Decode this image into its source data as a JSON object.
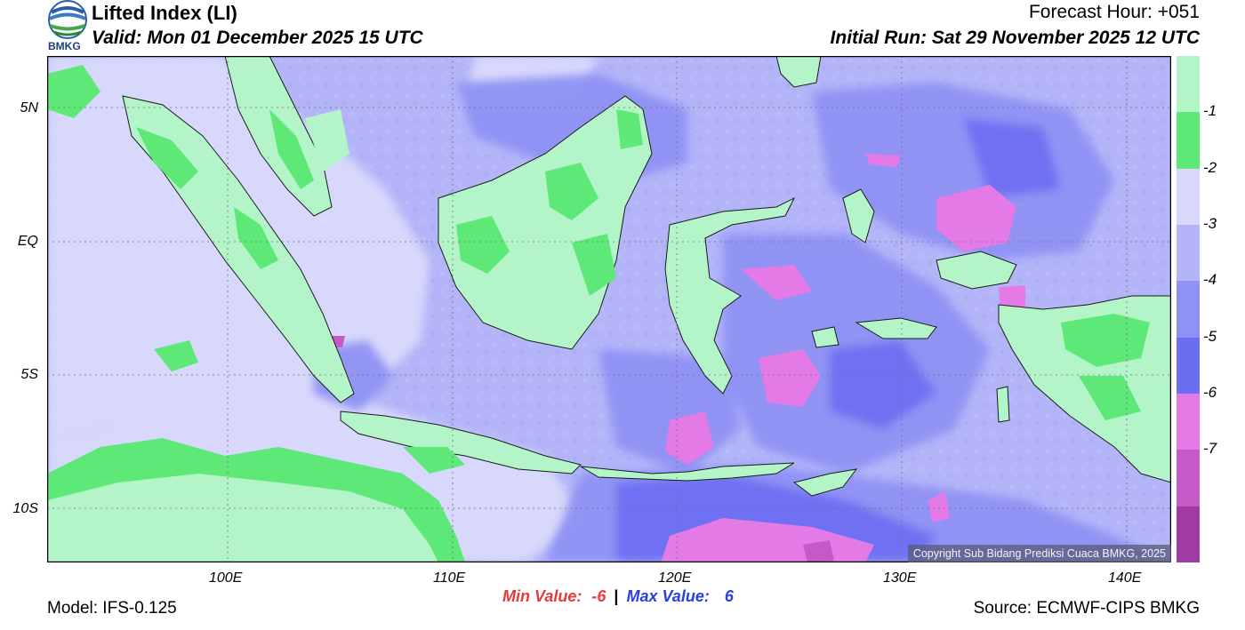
{
  "header": {
    "logo_text": "BMKG",
    "title": "Lifted Index (LI)",
    "valid": "Valid: Mon 01 December 2025 15 UTC",
    "forecast_hour": "Forecast Hour: +051",
    "initial_run": "Initial Run: Sat 29 November 2025 12 UTC"
  },
  "map": {
    "lat_labels": [
      "5N",
      "EQ",
      "5S",
      "10S"
    ],
    "lon_labels": [
      "100E",
      "110E",
      "120E",
      "130E",
      "140E"
    ],
    "copyright": "Copyright Sub Bidang Prediksi Cuaca BMKG, 2025"
  },
  "colorbar": {
    "colors": [
      "#b3f5c8",
      "#5ee878",
      "#d7d8fb",
      "#b3b5f8",
      "#8f92f4",
      "#6c6ef2",
      "#e47ae6",
      "#c659c8",
      "#a03ba2"
    ],
    "labels": [
      "-1",
      "-2",
      "-3",
      "-4",
      "-5",
      "-6",
      "-7"
    ]
  },
  "stats": {
    "min_label": "Min Value:",
    "min_value": "-6",
    "separator": "|",
    "max_label": "Max Value:",
    "max_value": "6",
    "min_color": "#e83a3a",
    "max_color": "#2a3fe0"
  },
  "footer": {
    "model": "Model: IFS-0.125",
    "source": "Source: ECMWF-CIPS BMKG"
  }
}
